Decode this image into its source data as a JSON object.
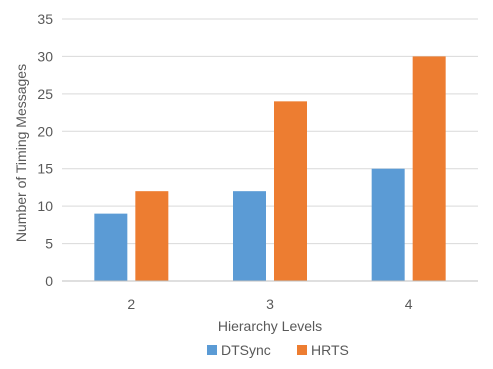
{
  "chart_data": {
    "type": "bar",
    "title": "",
    "xlabel": "Hierarchy Levels",
    "ylabel": "Number of Timing Messages",
    "categories": [
      "2",
      "3",
      "4"
    ],
    "series": [
      {
        "name": "DTSync",
        "values": [
          9,
          12,
          15
        ],
        "color": "#5b9bd5"
      },
      {
        "name": "HRTS",
        "values": [
          12,
          24,
          30
        ],
        "color": "#ed7d31"
      }
    ],
    "ylim": [
      0,
      35
    ],
    "yticks": [
      0,
      5,
      10,
      15,
      20,
      25,
      30,
      35
    ],
    "grid": "horizontal",
    "legend_position": "bottom"
  }
}
